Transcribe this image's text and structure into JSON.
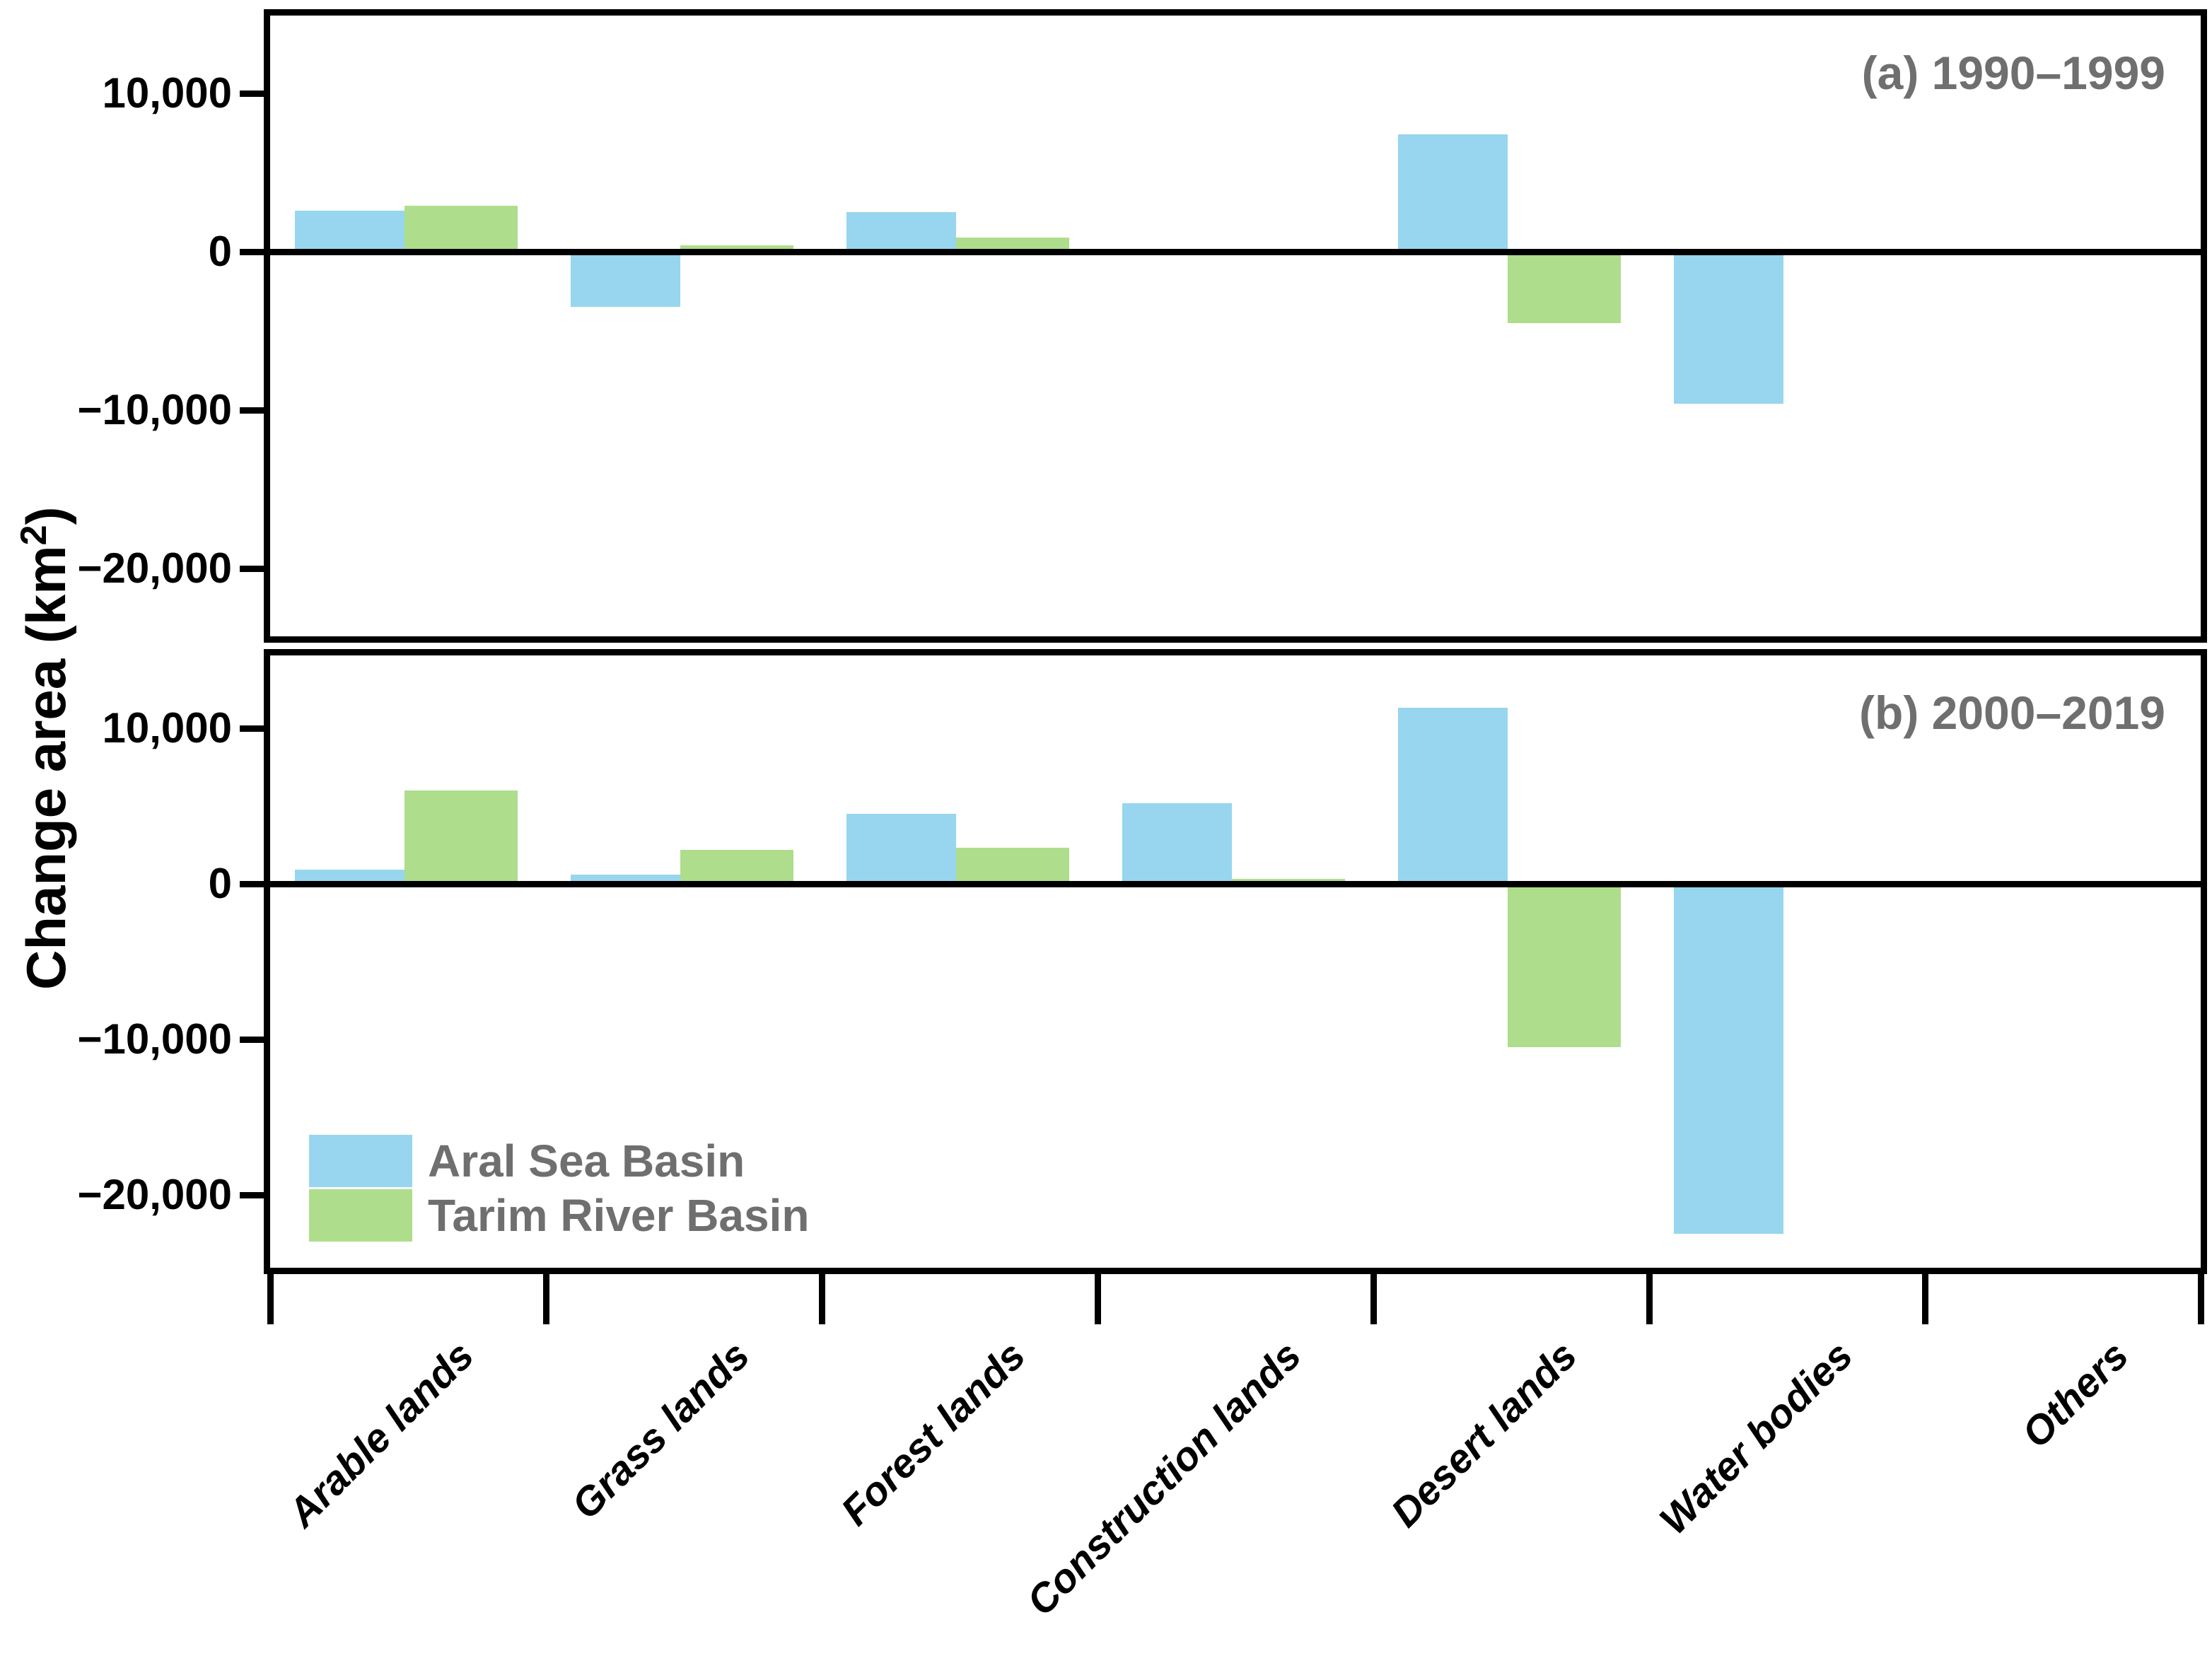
{
  "chart_data": {
    "type": "bar",
    "title": "",
    "xlabel": "",
    "ylabel": {
      "pre": "Change area (km",
      "sup": "2",
      "post": ")"
    },
    "categories": [
      "Arable lands",
      "Grass lands",
      "Forest lands",
      "Construction lands",
      "Desert lands",
      "Water bodies",
      "Others"
    ],
    "yticks": [
      {
        "value": 10000,
        "label": "10,000"
      },
      {
        "value": 0,
        "label": "0"
      },
      {
        "value": -10000,
        "label": "−10,000"
      },
      {
        "value": -20000,
        "label": "−20,000"
      }
    ],
    "ylim": [
      -25000,
      15000
    ],
    "grid": false,
    "legend_position": "lower-left-of-panel-b",
    "panels": [
      {
        "id": "a",
        "label": "(a) 1990–1999",
        "series": [
          {
            "name": "Aral Sea Basin",
            "values": [
              2600,
              -3500,
              2500,
              200,
              7400,
              -9600,
              0
            ]
          },
          {
            "name": "Tarim River Basin",
            "values": [
              2900,
              400,
              900,
              0,
              -4500,
              -200,
              0
            ]
          }
        ]
      },
      {
        "id": "b",
        "label": "(b) 2000–2019",
        "series": [
          {
            "name": "Aral Sea Basin",
            "values": [
              900,
              600,
              4500,
              5200,
              11300,
              -22500,
              0
            ]
          },
          {
            "name": "Tarim River Basin",
            "values": [
              6000,
              2200,
              2300,
              300,
              -10500,
              0,
              0
            ]
          }
        ]
      }
    ],
    "legend": [
      {
        "name": "Aral Sea Basin",
        "color": "#97d6ee"
      },
      {
        "name": "Tarim River Basin",
        "color": "#aedd8b"
      }
    ],
    "colors": {
      "aral_series": "#97d6ee",
      "tarim_series": "#aedd8b",
      "axis": "#000000",
      "panel_tag_text": "#6f6f6f",
      "legend_text": "#6f6f6f"
    }
  }
}
